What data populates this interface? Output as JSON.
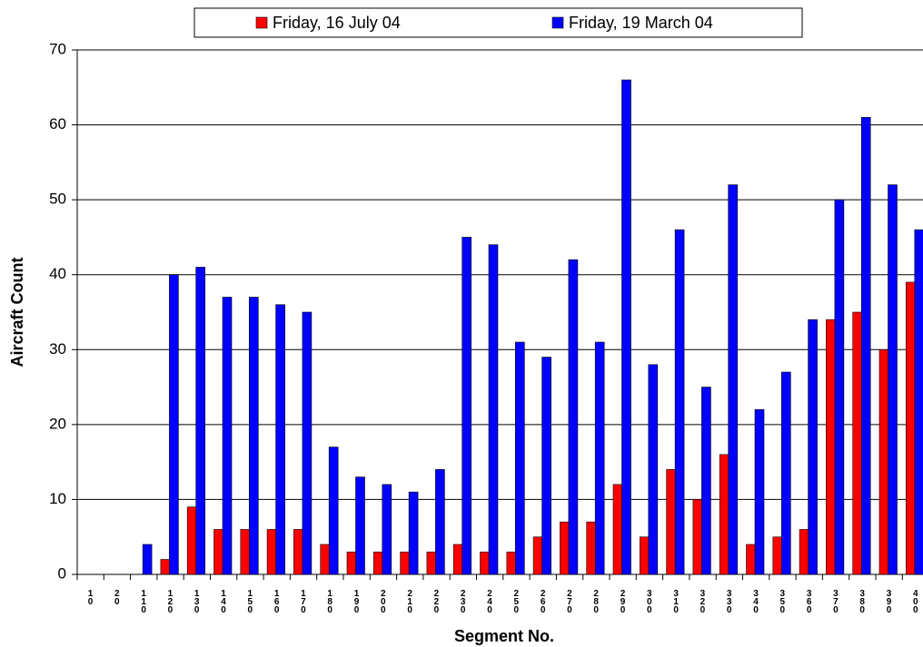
{
  "chart_data": {
    "type": "bar",
    "x_label": "Segment No.",
    "y_label": "Aircraft Count",
    "categories": [
      "10",
      "20",
      "110",
      "120",
      "130",
      "140",
      "150",
      "160",
      "170",
      "180",
      "190",
      "200",
      "210",
      "220",
      "230",
      "240",
      "250",
      "260",
      "270",
      "280",
      "290",
      "300",
      "310",
      "320",
      "330",
      "340",
      "350",
      "360",
      "370",
      "380",
      "390",
      "400"
    ],
    "series": [
      {
        "name": "Friday, 16 July 04",
        "color": "#ff0000",
        "values": [
          0,
          0,
          0,
          2,
          9,
          6,
          6,
          6,
          6,
          4,
          3,
          3,
          3,
          3,
          4,
          3,
          3,
          5,
          7,
          7,
          12,
          5,
          14,
          10,
          16,
          4,
          5,
          6,
          34,
          35,
          30,
          39
        ]
      },
      {
        "name": "Friday, 19 March 04",
        "color": "#0000ff",
        "values": [
          0,
          0,
          4,
          40,
          41,
          37,
          37,
          36,
          35,
          17,
          13,
          12,
          11,
          14,
          45,
          44,
          31,
          29,
          42,
          31,
          66,
          28,
          46,
          25,
          52,
          22,
          27,
          34,
          50,
          61,
          52,
          46
        ]
      }
    ],
    "ylim": [
      0,
      70
    ],
    "yticks": [
      0,
      10,
      20,
      30,
      40,
      50,
      60,
      70
    ],
    "grid": true,
    "legend": "top"
  }
}
